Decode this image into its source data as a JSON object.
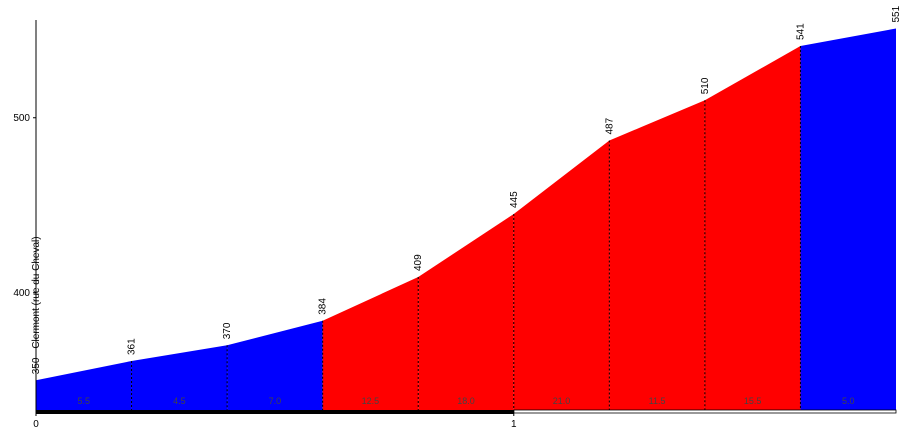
{
  "chart_data": {
    "type": "area",
    "x": [
      0,
      0.2,
      0.4,
      0.6,
      0.8,
      1.0,
      1.2,
      1.4,
      1.6,
      1.8
    ],
    "series": [
      {
        "values": [
          350,
          361,
          370,
          384,
          409,
          445,
          487,
          510,
          541,
          551
        ],
        "value_labels": [
          "350 - Clermont (rue du Cheval)",
          "361",
          "370",
          "384",
          "409",
          "445",
          "487",
          "510",
          "541",
          "551"
        ]
      }
    ],
    "segments": {
      "values": [
        5.5,
        4.5,
        7.0,
        12.5,
        18.0,
        21.0,
        11.5,
        15.5,
        5.0
      ],
      "value_labels": [
        "5.5",
        "4.5",
        "7.0",
        "12.5",
        "18.0",
        "21.0",
        "11.5",
        "15.5",
        "5.0"
      ],
      "colors": [
        "#0000ff",
        "#0000ff",
        "#0000ff",
        "#ff0000",
        "#ff0000",
        "#ff0000",
        "#ff0000",
        "#ff0000",
        "#0000ff"
      ]
    },
    "xlim": [
      0,
      1.8
    ],
    "xticks": [
      0,
      1
    ],
    "ylim": [
      333,
      555
    ],
    "yticks": [
      400,
      500
    ]
  }
}
